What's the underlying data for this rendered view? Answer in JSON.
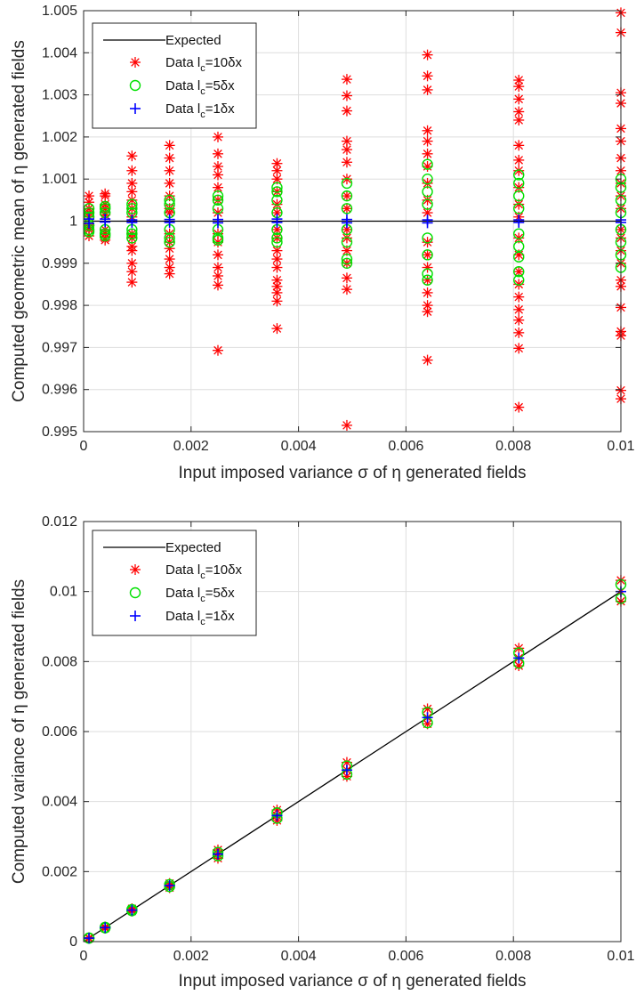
{
  "chart_data": [
    {
      "type": "scatter",
      "ylabel": "Computed geometric mean of η generated fields",
      "xlabel": "Input imposed variance σ of η generated fields",
      "xlim": [
        0,
        0.01
      ],
      "ylim": [
        0.995,
        1.005
      ],
      "xticks": [
        0,
        0.002,
        0.004,
        0.006,
        0.008,
        0.01
      ],
      "xtick_labels": [
        "0",
        "0.002",
        "0.004",
        "0.006",
        "0.008",
        "0.01"
      ],
      "yticks": [
        0.995,
        0.996,
        0.997,
        0.998,
        0.999,
        1.0,
        1.001,
        1.002,
        1.003,
        1.004,
        1.005
      ],
      "ytick_labels": [
        "0.995",
        "0.996",
        "0.997",
        "0.998",
        "0.999",
        "1",
        "1.001",
        "1.002",
        "1.003",
        "1.004",
        "1.005"
      ],
      "grid": true,
      "legend_position": "top-left",
      "x_values": [
        0.0001,
        0.0004,
        0.0009,
        0.0016,
        0.0025,
        0.0036,
        0.0049,
        0.0064,
        0.0081,
        0.01
      ],
      "expected": {
        "name": "Expected",
        "color": "#000000",
        "line": [
          [
            0,
            1.0
          ],
          [
            0.01,
            1.0
          ]
        ]
      },
      "series": [
        {
          "name": "Data l_c=10δx",
          "label_main": "Data l",
          "label_sub": "c",
          "label_rest": "=10δx",
          "marker": "asterisk",
          "color": "#ff0000",
          "values": [
            [
              1.00045,
              1.0006,
              1.0003,
              0.99985,
              0.99965,
              1.0001,
              0.9998,
              1.0002,
              0.9999
            ],
            [
              1.0006,
              1.00065,
              1.0004,
              0.9996,
              0.99955,
              1.0002,
              0.9998,
              1.0003,
              0.9997,
              1.00015
            ],
            [
              1.00155,
              1.0012,
              1.0009,
              1.0007,
              1.0005,
              0.9994,
              0.9993,
              0.999,
              0.9988,
              0.99855,
              1.0003,
              0.9997,
              0.9996,
              1.0001
            ],
            [
              1.0018,
              1.0015,
              1.0012,
              1.0009,
              1.0006,
              0.99935,
              0.9991,
              0.9989,
              0.99875,
              1.0003,
              0.9997,
              0.9995,
              1.0002
            ],
            [
              1.002,
              1.0016,
              1.0013,
              1.0011,
              1.0008,
              1.0005,
              0.9995,
              0.9992,
              0.9989,
              0.9987,
              0.99848,
              0.99693,
              1.0002,
              0.9997
            ],
            [
              1.00137,
              1.0012,
              1.001,
              1.0007,
              1.0004,
              0.9996,
              0.9993,
              0.9991,
              0.9989,
              0.9986,
              0.99845,
              0.9983,
              0.9981,
              0.99745,
              1.0002,
              0.9998
            ],
            [
              1.00337,
              1.00298,
              1.00262,
              1.0019,
              1.0017,
              1.0014,
              1.001,
              1.0006,
              0.9996,
              0.9993,
              0.999,
              0.99865,
              0.99838,
              0.99515,
              1.0003,
              0.9998
            ],
            [
              1.00395,
              1.00345,
              1.00312,
              1.00215,
              1.0019,
              1.0016,
              1.0013,
              1.0009,
              1.0005,
              0.9995,
              0.9992,
              0.9989,
              0.9986,
              0.9983,
              0.998,
              0.99785,
              0.9967,
              1.0002
            ],
            [
              1.00335,
              1.0032,
              1.0029,
              1.0026,
              1.0024,
              1.0018,
              1.00145,
              1.0012,
              1.0008,
              1.0004,
              0.9996,
              0.9992,
              0.9988,
              0.9985,
              0.9982,
              0.9979,
              0.99765,
              0.99735,
              0.99698,
              0.99558,
              1.0001
            ],
            [
              1.00495,
              1.00448,
              1.00305,
              1.0028,
              1.0022,
              1.0019,
              1.0015,
              1.0012,
              1.0009,
              1.0006,
              0.9996,
              0.9993,
              0.999,
              0.9986,
              0.99845,
              0.99795,
              0.99738,
              0.99728,
              0.99598,
              0.99578,
              1.0003,
              0.9998
            ]
          ]
        },
        {
          "name": "Data l_c=5δx",
          "label_main": "Data l",
          "label_sub": "c",
          "label_rest": "=5δx",
          "marker": "circle",
          "color": "#00e000",
          "values": [
            [
              1.0002,
              1.0001,
              0.9999,
              0.9998,
              1.0003,
              0.99975
            ],
            [
              1.0003,
              1.0002,
              0.9998,
              0.9997,
              1.00035,
              0.99965
            ],
            [
              1.0004,
              1.0003,
              1.0002,
              0.9998,
              0.9997,
              0.9996
            ],
            [
              1.0005,
              1.0004,
              1.0002,
              0.9998,
              0.9996,
              0.9995
            ],
            [
              1.0006,
              1.0005,
              1.0003,
              0.9998,
              0.9996,
              0.99955
            ],
            [
              1.0008,
              1.0007,
              1.0005,
              1.0002,
              0.9998,
              0.9996,
              0.9995
            ],
            [
              1.0009,
              1.0006,
              1.0003,
              0.9998,
              0.9995,
              0.9991,
              0.999
            ],
            [
              1.00135,
              1.001,
              1.0007,
              1.0004,
              0.9996,
              0.9992,
              0.99875,
              0.9986
            ],
            [
              1.0011,
              1.0009,
              1.0006,
              1.0003,
              0.9997,
              0.9994,
              0.99915,
              0.9988,
              0.9986
            ],
            [
              1.001,
              1.0008,
              1.0005,
              1.0002,
              0.9998,
              0.9995,
              0.9992,
              0.9989
            ]
          ]
        },
        {
          "name": "Data l_c=1δx",
          "label_main": "Data l",
          "label_sub": "c",
          "label_rest": "=1δx",
          "marker": "plus",
          "color": "#0000ff",
          "values": [
            [
              1.00005,
              0.99995
            ],
            [
              1.00005,
              0.99998
            ],
            [
              1.00003,
              0.99997
            ],
            [
              1.00004,
              0.99997
            ],
            [
              1.00004,
              0.99996
            ],
            [
              1.00005,
              0.99997
            ],
            [
              1.00004,
              0.99996
            ],
            [
              1.00003,
              0.99996
            ],
            [
              1.00003,
              0.99997
            ],
            [
              1.00003,
              0.99997
            ]
          ]
        }
      ]
    },
    {
      "type": "scatter",
      "ylabel": "Computed variance of η generated fields",
      "xlabel": "Input imposed variance σ of η generated fields",
      "xlim": [
        0,
        0.01
      ],
      "ylim": [
        0,
        0.012
      ],
      "xticks": [
        0,
        0.002,
        0.004,
        0.006,
        0.008,
        0.01
      ],
      "xtick_labels": [
        "0",
        "0.002",
        "0.004",
        "0.006",
        "0.008",
        "0.01"
      ],
      "yticks": [
        0,
        0.002,
        0.004,
        0.006,
        0.008,
        0.01,
        0.012
      ],
      "ytick_labels": [
        "0",
        "0.002",
        "0.004",
        "0.006",
        "0.008",
        "0.01",
        "0.012"
      ],
      "grid": true,
      "legend_position": "top-left",
      "x_values": [
        0.0001,
        0.0004,
        0.0009,
        0.0016,
        0.0025,
        0.0036,
        0.0049,
        0.0064,
        0.0081,
        0.01
      ],
      "expected": {
        "name": "Expected",
        "color": "#000000",
        "line": [
          [
            0,
            0
          ],
          [
            0.01,
            0.01
          ]
        ]
      },
      "series": [
        {
          "name": "Data l_c=10δx",
          "label_main": "Data l",
          "label_sub": "c",
          "label_rest": "=10δx",
          "marker": "asterisk",
          "color": "#ff0000",
          "values": [
            [
              0.00011,
              0.0001,
              9e-05
            ],
            [
              0.00042,
              0.0004,
              0.00038
            ],
            [
              0.00094,
              0.0009,
              0.00087
            ],
            [
              0.00166,
              0.0016,
              0.00154
            ],
            [
              0.00262,
              0.0025,
              0.00238
            ],
            [
              0.00376,
              0.0036,
              0.00346
            ],
            [
              0.00512,
              0.0049,
              0.00472
            ],
            [
              0.00665,
              0.0064,
              0.00622
            ],
            [
              0.00838,
              0.0081,
              0.00788
            ],
            [
              0.01032,
              0.01,
              0.00972
            ]
          ]
        },
        {
          "name": "Data l_c=5δx",
          "label_main": "Data l",
          "label_sub": "c",
          "label_rest": "=5δx",
          "marker": "circle",
          "color": "#00e000",
          "values": [
            [
              0.000105,
              9.5e-05
            ],
            [
              0.00041,
              0.00039
            ],
            [
              0.00092,
              0.00088
            ],
            [
              0.00163,
              0.00157
            ],
            [
              0.00255,
              0.00245
            ],
            [
              0.00368,
              0.00352
            ],
            [
              0.00502,
              0.00478
            ],
            [
              0.00655,
              0.00625
            ],
            [
              0.00825,
              0.00795
            ],
            [
              0.0102,
              0.0098
            ]
          ]
        },
        {
          "name": "Data l_c=1δx",
          "label_main": "Data l",
          "label_sub": "c",
          "label_rest": "=1δx",
          "marker": "plus",
          "color": "#0000ff",
          "values": [
            [
              0.0001
            ],
            [
              0.0004
            ],
            [
              0.0009
            ],
            [
              0.0016
            ],
            [
              0.0025
            ],
            [
              0.0036
            ],
            [
              0.0049
            ],
            [
              0.0064
            ],
            [
              0.0081
            ],
            [
              0.01
            ]
          ]
        }
      ]
    }
  ]
}
